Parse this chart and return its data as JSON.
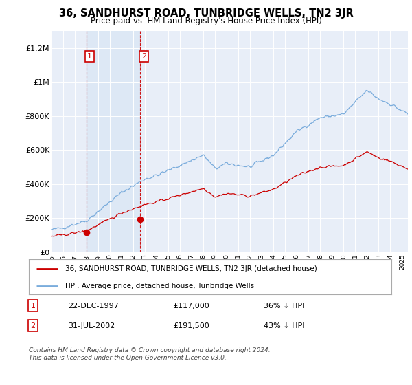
{
  "title": "36, SANDHURST ROAD, TUNBRIDGE WELLS, TN2 3JR",
  "subtitle": "Price paid vs. HM Land Registry's House Price Index (HPI)",
  "legend_label_red": "36, SANDHURST ROAD, TUNBRIDGE WELLS, TN2 3JR (detached house)",
  "legend_label_blue": "HPI: Average price, detached house, Tunbridge Wells",
  "transaction1_date": "22-DEC-1997",
  "transaction1_price": "£117,000",
  "transaction1_note": "36% ↓ HPI",
  "transaction2_date": "31-JUL-2002",
  "transaction2_price": "£191,500",
  "transaction2_note": "43% ↓ HPI",
  "footer": "Contains HM Land Registry data © Crown copyright and database right 2024.\nThis data is licensed under the Open Government Licence v3.0.",
  "ylim": [
    0,
    1300000
  ],
  "yticks": [
    0,
    200000,
    400000,
    600000,
    800000,
    1000000,
    1200000
  ],
  "ytick_labels": [
    "£0",
    "£200K",
    "£400K",
    "£600K",
    "£800K",
    "£1M",
    "£1.2M"
  ],
  "color_red": "#cc0000",
  "color_blue": "#7aacdc",
  "color_vline": "#cc0000",
  "bg_color": "#ffffff",
  "plot_bg_color": "#e8eef8",
  "transaction1_x": 1997.97,
  "transaction2_x": 2002.58,
  "transaction1_y": 117000,
  "transaction2_y": 191500,
  "xmin": 1995.0,
  "xmax": 2025.5
}
